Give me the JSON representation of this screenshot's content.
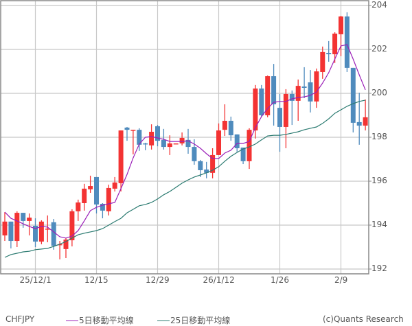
{
  "symbol": "CHFJPY",
  "credit": "(c)Quants Research",
  "legend": [
    {
      "label": "5日移動平均線",
      "color": "#9b1fb8"
    },
    {
      "label": "25日移動平均線",
      "color": "#2a7a70"
    }
  ],
  "colors": {
    "up": "#f33333",
    "down": "#4f8bbd",
    "grid": "#c8c8c8",
    "axis": "#888888",
    "ma5": "#9b1fb8",
    "ma25": "#2a7a70"
  },
  "chart_data": {
    "type": "candlestick",
    "title": "CHFJPY",
    "xlabel": "",
    "ylabel": "",
    "ylim": [
      192,
      204
    ],
    "y_ticks": [
      192,
      194,
      196,
      198,
      200,
      202,
      204
    ],
    "x_tick_labels": [
      {
        "label": "25/12/1",
        "index": 5
      },
      {
        "label": "12/15",
        "index": 15
      },
      {
        "label": "12/29",
        "index": 25
      },
      {
        "label": "26/1/12",
        "index": 35
      },
      {
        "label": "1/26",
        "index": 45
      },
      {
        "label": "2/9",
        "index": 55
      }
    ],
    "grid": true,
    "y_axis_position": "right",
    "legend_position": "bottom",
    "candles": [
      {
        "o": 193.53,
        "h": 194.59,
        "l": 193.28,
        "c": 194.16
      },
      {
        "o": 194.16,
        "h": 194.16,
        "l": 192.94,
        "c": 193.28
      },
      {
        "o": 193.28,
        "h": 194.63,
        "l": 193.0,
        "c": 194.56
      },
      {
        "o": 194.56,
        "h": 194.56,
        "l": 193.88,
        "c": 194.19
      },
      {
        "o": 194.19,
        "h": 194.53,
        "l": 193.53,
        "c": 194.34
      },
      {
        "o": 193.97,
        "h": 194.31,
        "l": 193.0,
        "c": 193.25
      },
      {
        "o": 193.25,
        "h": 194.22,
        "l": 193.13,
        "c": 194.16
      },
      {
        "o": 193.81,
        "h": 194.44,
        "l": 193.22,
        "c": 193.84
      },
      {
        "o": 194.13,
        "h": 194.28,
        "l": 192.88,
        "c": 193.06
      },
      {
        "o": 193.09,
        "h": 193.28,
        "l": 192.44,
        "c": 193.13
      },
      {
        "o": 192.91,
        "h": 193.41,
        "l": 192.5,
        "c": 193.34
      },
      {
        "o": 193.31,
        "h": 194.72,
        "l": 193.03,
        "c": 194.63
      },
      {
        "o": 194.63,
        "h": 195.16,
        "l": 194.19,
        "c": 195.03
      },
      {
        "o": 195.0,
        "h": 195.88,
        "l": 194.66,
        "c": 195.66
      },
      {
        "o": 195.63,
        "h": 196.25,
        "l": 195.47,
        "c": 195.78
      },
      {
        "o": 196.19,
        "h": 196.19,
        "l": 194.53,
        "c": 194.94
      },
      {
        "o": 194.97,
        "h": 195.0,
        "l": 194.31,
        "c": 194.66
      },
      {
        "o": 194.63,
        "h": 195.84,
        "l": 194.44,
        "c": 195.69
      },
      {
        "o": 195.66,
        "h": 196.19,
        "l": 195.53,
        "c": 195.94
      },
      {
        "o": 195.91,
        "h": 198.31,
        "l": 195.53,
        "c": 198.31
      },
      {
        "o": 198.44,
        "h": 198.47,
        "l": 197.84,
        "c": 198.34
      },
      {
        "o": 198.31,
        "h": 198.34,
        "l": 197.22,
        "c": 198.34
      },
      {
        "o": 198.34,
        "h": 198.41,
        "l": 197.38,
        "c": 197.66
      },
      {
        "o": 197.72,
        "h": 197.75,
        "l": 197.41,
        "c": 197.69
      },
      {
        "o": 197.63,
        "h": 198.59,
        "l": 197.44,
        "c": 198.25
      },
      {
        "o": 198.5,
        "h": 198.56,
        "l": 197.59,
        "c": 197.84
      },
      {
        "o": 197.88,
        "h": 198.38,
        "l": 197.44,
        "c": 197.56
      },
      {
        "o": 197.56,
        "h": 198.09,
        "l": 197.19,
        "c": 197.72
      },
      {
        "o": 197.7,
        "h": 197.72,
        "l": 197.69,
        "c": 197.72
      },
      {
        "o": 197.72,
        "h": 198.22,
        "l": 197.63,
        "c": 197.97
      },
      {
        "o": 197.88,
        "h": 198.38,
        "l": 197.25,
        "c": 197.56
      },
      {
        "o": 197.56,
        "h": 197.91,
        "l": 196.75,
        "c": 196.91
      },
      {
        "o": 196.91,
        "h": 196.97,
        "l": 196.19,
        "c": 196.5
      },
      {
        "o": 196.53,
        "h": 196.88,
        "l": 196.13,
        "c": 196.38
      },
      {
        "o": 196.38,
        "h": 197.5,
        "l": 196.13,
        "c": 197.19
      },
      {
        "o": 197.19,
        "h": 198.63,
        "l": 197.19,
        "c": 198.31
      },
      {
        "o": 198.34,
        "h": 199.5,
        "l": 198.06,
        "c": 198.75
      },
      {
        "o": 198.75,
        "h": 198.94,
        "l": 197.84,
        "c": 198.09
      },
      {
        "o": 198.13,
        "h": 198.13,
        "l": 197.34,
        "c": 197.5
      },
      {
        "o": 197.53,
        "h": 197.53,
        "l": 196.78,
        "c": 196.91
      },
      {
        "o": 196.91,
        "h": 198.41,
        "l": 196.56,
        "c": 198.34
      },
      {
        "o": 198.31,
        "h": 200.38,
        "l": 197.94,
        "c": 200.22
      },
      {
        "o": 200.22,
        "h": 200.38,
        "l": 198.91,
        "c": 199.0
      },
      {
        "o": 199.0,
        "h": 200.81,
        "l": 198.91,
        "c": 200.78
      },
      {
        "o": 200.78,
        "h": 201.34,
        "l": 198.53,
        "c": 199.5
      },
      {
        "o": 199.34,
        "h": 199.97,
        "l": 197.34,
        "c": 198.47
      },
      {
        "o": 198.47,
        "h": 200.19,
        "l": 197.5,
        "c": 199.97
      },
      {
        "o": 199.97,
        "h": 200.13,
        "l": 198.56,
        "c": 199.66
      },
      {
        "o": 199.66,
        "h": 200.63,
        "l": 198.75,
        "c": 200.34
      },
      {
        "o": 200.31,
        "h": 201.19,
        "l": 199.78,
        "c": 200.25
      },
      {
        "o": 200.5,
        "h": 201.06,
        "l": 199.13,
        "c": 199.63
      },
      {
        "o": 199.63,
        "h": 201.13,
        "l": 199.34,
        "c": 201.0
      },
      {
        "o": 200.97,
        "h": 202.13,
        "l": 200.66,
        "c": 201.88
      },
      {
        "o": 201.84,
        "h": 202.38,
        "l": 201.44,
        "c": 201.78
      },
      {
        "o": 201.78,
        "h": 202.78,
        "l": 201.38,
        "c": 202.72
      },
      {
        "o": 202.69,
        "h": 203.53,
        "l": 201.69,
        "c": 203.5
      },
      {
        "o": 203.5,
        "h": 203.69,
        "l": 200.97,
        "c": 201.16
      },
      {
        "o": 201.16,
        "h": 201.16,
        "l": 198.22,
        "c": 198.66
      },
      {
        "o": 198.69,
        "h": 200.03,
        "l": 197.66,
        "c": 198.53
      },
      {
        "o": 198.53,
        "h": 199.72,
        "l": 198.31,
        "c": 198.91
      }
    ],
    "series": [
      {
        "name": "5日移動平均線",
        "values": [
          194.59,
          194.31,
          194.19,
          194.06,
          193.94,
          193.84,
          193.94,
          193.91,
          193.69,
          193.47,
          193.41,
          193.5,
          193.75,
          194.19,
          194.66,
          194.81,
          194.91,
          194.97,
          195.03,
          195.66,
          196.31,
          197.06,
          197.69,
          198.0,
          198.03,
          197.97,
          197.91,
          197.81,
          197.81,
          197.81,
          197.84,
          197.69,
          197.5,
          197.25,
          197.03,
          197.03,
          197.28,
          197.41,
          197.72,
          197.72,
          197.81,
          198.44,
          198.94,
          199.31,
          199.59,
          199.63,
          199.63,
          199.75,
          199.81,
          199.84,
          199.91,
          200.06,
          200.47,
          200.94,
          201.56,
          202.16,
          202.22,
          201.56,
          200.84,
          200.16
        ]
      },
      {
        "name": "25日移動平均線",
        "values": [
          192.53,
          192.66,
          192.72,
          192.78,
          192.81,
          192.88,
          192.91,
          192.94,
          193.03,
          193.13,
          193.25,
          193.41,
          193.56,
          193.63,
          193.69,
          193.75,
          193.84,
          194.0,
          194.16,
          194.31,
          194.56,
          194.72,
          194.88,
          194.94,
          195.03,
          195.19,
          195.38,
          195.53,
          195.72,
          195.91,
          196.06,
          196.19,
          196.28,
          196.38,
          196.5,
          196.66,
          196.91,
          197.13,
          197.31,
          197.47,
          197.56,
          197.69,
          197.88,
          198.06,
          198.09,
          198.09,
          198.13,
          198.19,
          198.25,
          198.34,
          198.41,
          198.47,
          198.63,
          198.84,
          199.09,
          199.25,
          199.41,
          199.53,
          199.63,
          199.69
        ]
      }
    ]
  }
}
